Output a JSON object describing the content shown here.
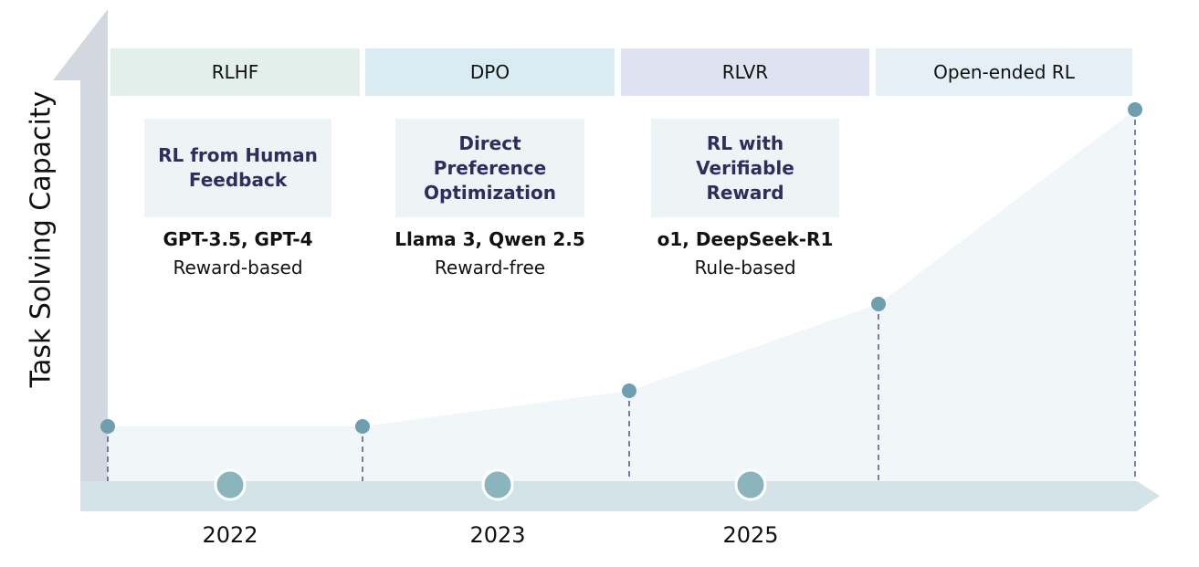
{
  "y_axis_label": "Task Solving Capacity",
  "stages": [
    {
      "header": "RLHF",
      "title": "RL from Human Feedback",
      "models": "GPT-3.5, GPT-4",
      "kind": "Reward-based",
      "year": "2022"
    },
    {
      "header": "DPO",
      "title": "Direct Preference Optimization",
      "models": "Llama 3, Qwen 2.5",
      "kind": "Reward-free",
      "year": "2023"
    },
    {
      "header": "RLVR",
      "title": "RL with Verifiable Reward",
      "models": "o1, DeepSeek-R1",
      "kind": "Rule-based",
      "year": "2025"
    },
    {
      "header": "Open-ended RL"
    }
  ]
}
